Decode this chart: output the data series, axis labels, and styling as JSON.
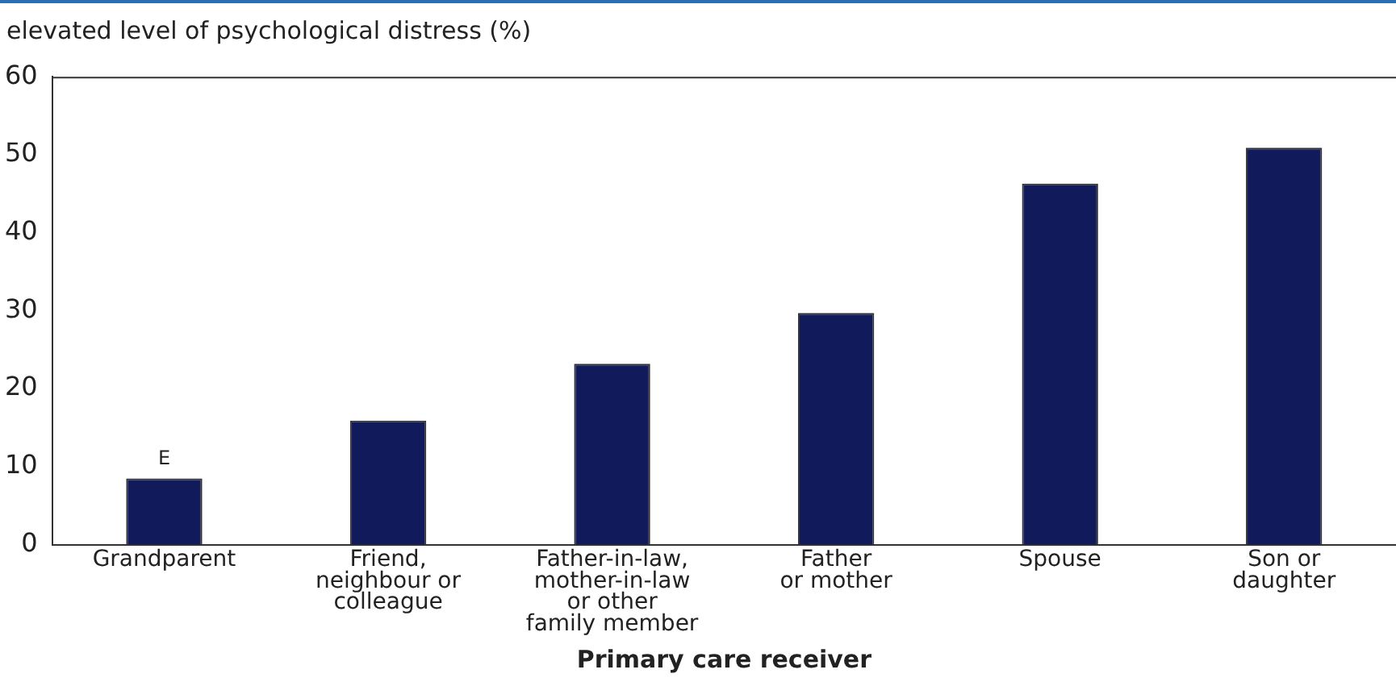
{
  "chart_data": {
    "type": "bar",
    "ylabel": "elevated level of psychological distress (%)",
    "xlabel": "Primary care receiver",
    "categories": [
      "Grandparent",
      "Friend,\nneighbour or\ncolleague",
      "Father-in-law,\nmother-in-law\nor other\nfamily member",
      "Father\nor mother",
      "Spouse",
      "Son or\ndaughter"
    ],
    "values": [
      8.5,
      15.9,
      23.2,
      29.7,
      46.3,
      50.9
    ],
    "color": "#111a5a",
    "ylim": [
      0,
      60
    ],
    "yticks": [
      0,
      10,
      20,
      30,
      40,
      50,
      60
    ],
    "grid": false,
    "legend": false,
    "annotations": [
      {
        "text": "E",
        "x": "Grandparent",
        "y": 8.5
      }
    ]
  }
}
